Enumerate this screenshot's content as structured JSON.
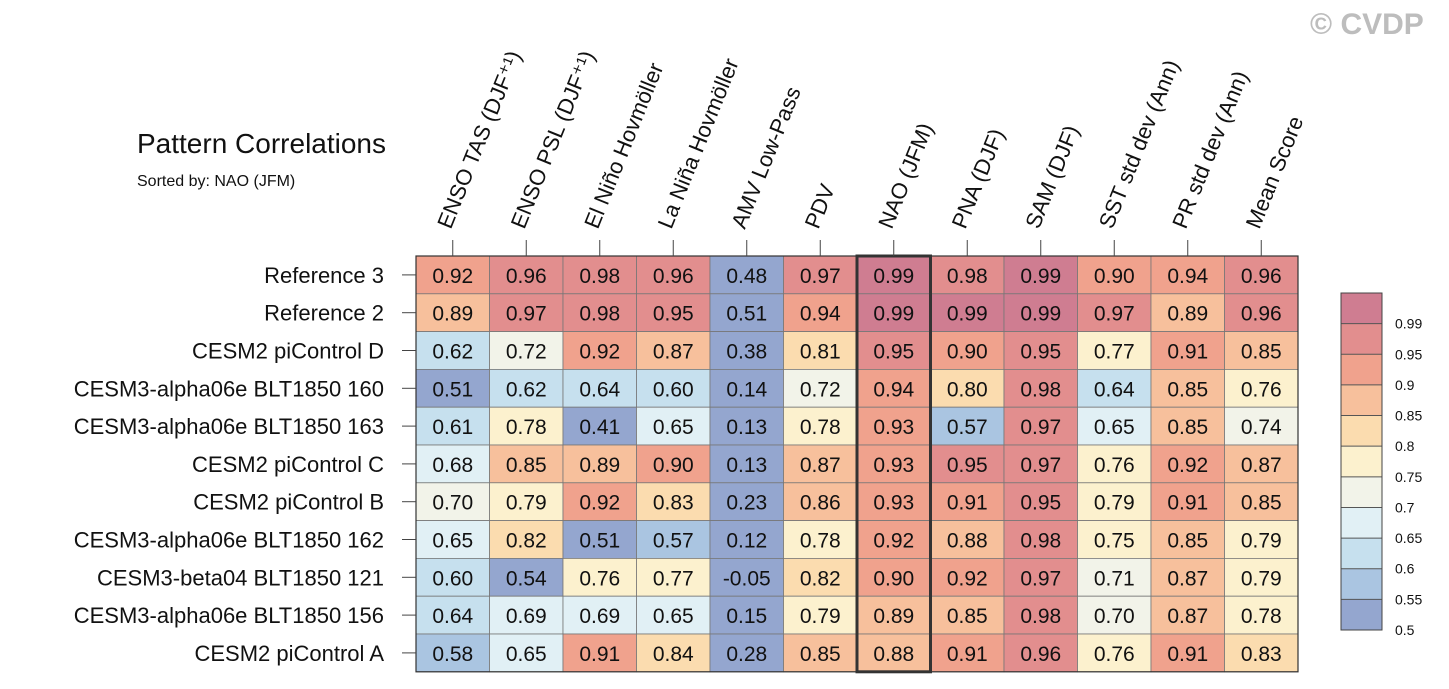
{
  "watermark": "© CVDP",
  "chart_data": {
    "type": "heatmap",
    "title": "Pattern Correlations",
    "subtitle": "Sorted by: NAO (JFM)",
    "highlight_column": "NAO (JFM)",
    "columns": [
      "ENSO TAS (DJF⁺¹)",
      "ENSO PSL (DJF⁺¹)",
      "El Niño Hovmöller",
      "La Niña Hovmöller",
      "AMV Low-Pass",
      "PDV",
      "NAO (JFM)",
      "PNA (DJF)",
      "SAM (DJF)",
      "SST std dev (Ann)",
      "PR std dev (Ann)",
      "Mean Score"
    ],
    "rows": [
      "Reference 3",
      "Reference 2",
      "CESM2 piControl D",
      "CESM3-alpha06e BLT1850 160",
      "CESM3-alpha06e BLT1850 163",
      "CESM2 piControl C",
      "CESM2 piControl B",
      "CESM3-alpha06e BLT1850 162",
      "CESM3-beta04 BLT1850 121",
      "CESM3-alpha06e BLT1850 156",
      "CESM2 piControl A"
    ],
    "values": [
      [
        "0.92",
        "0.96",
        "0.98",
        "0.96",
        "0.48",
        "0.97",
        "0.99",
        "0.98",
        "0.99",
        "0.90",
        "0.94",
        "0.96"
      ],
      [
        "0.89",
        "0.97",
        "0.98",
        "0.95",
        "0.51",
        "0.94",
        "0.99",
        "0.99",
        "0.99",
        "0.97",
        "0.89",
        "0.96"
      ],
      [
        "0.62",
        "0.72",
        "0.92",
        "0.87",
        "0.38",
        "0.81",
        "0.95",
        "0.90",
        "0.95",
        "0.77",
        "0.91",
        "0.85"
      ],
      [
        "0.51",
        "0.62",
        "0.64",
        "0.60",
        "0.14",
        "0.72",
        "0.94",
        "0.80",
        "0.98",
        "0.64",
        "0.85",
        "0.76"
      ],
      [
        "0.61",
        "0.78",
        "0.41",
        "0.65",
        "0.13",
        "0.78",
        "0.93",
        "0.57",
        "0.97",
        "0.65",
        "0.85",
        "0.74"
      ],
      [
        "0.68",
        "0.85",
        "0.89",
        "0.90",
        "0.13",
        "0.87",
        "0.93",
        "0.95",
        "0.97",
        "0.76",
        "0.92",
        "0.87"
      ],
      [
        "0.70",
        "0.79",
        "0.92",
        "0.83",
        "0.23",
        "0.86",
        "0.93",
        "0.91",
        "0.95",
        "0.79",
        "0.91",
        "0.85"
      ],
      [
        "0.65",
        "0.82",
        "0.51",
        "0.57",
        "0.12",
        "0.78",
        "0.92",
        "0.88",
        "0.98",
        "0.75",
        "0.85",
        "0.79"
      ],
      [
        "0.60",
        "0.54",
        "0.76",
        "0.77",
        "-0.05",
        "0.82",
        "0.90",
        "0.92",
        "0.97",
        "0.71",
        "0.87",
        "0.79"
      ],
      [
        "0.64",
        "0.69",
        "0.69",
        "0.65",
        "0.15",
        "0.79",
        "0.89",
        "0.85",
        "0.98",
        "0.70",
        "0.87",
        "0.78"
      ],
      [
        "0.58",
        "0.65",
        "0.91",
        "0.84",
        "0.28",
        "0.85",
        "0.88",
        "0.91",
        "0.96",
        "0.76",
        "0.91",
        "0.83"
      ]
    ],
    "colorbar": {
      "ticks": [
        "0.99",
        "0.95",
        "0.9",
        "0.85",
        "0.8",
        "0.75",
        "0.7",
        "0.65",
        "0.6",
        "0.55",
        "0.5"
      ],
      "levels": [
        0.5,
        0.55,
        0.6,
        0.65,
        0.7,
        0.75,
        0.8,
        0.85,
        0.9,
        0.95,
        0.99
      ],
      "colors": [
        "#94a6cf",
        "#aac5e1",
        "#c6e0ee",
        "#e1f0f5",
        "#f2f3e9",
        "#fcf1ce",
        "#fbdcaf",
        "#f7c09c",
        "#f0a28d",
        "#e28e8e",
        "#cf7d91"
      ]
    }
  }
}
